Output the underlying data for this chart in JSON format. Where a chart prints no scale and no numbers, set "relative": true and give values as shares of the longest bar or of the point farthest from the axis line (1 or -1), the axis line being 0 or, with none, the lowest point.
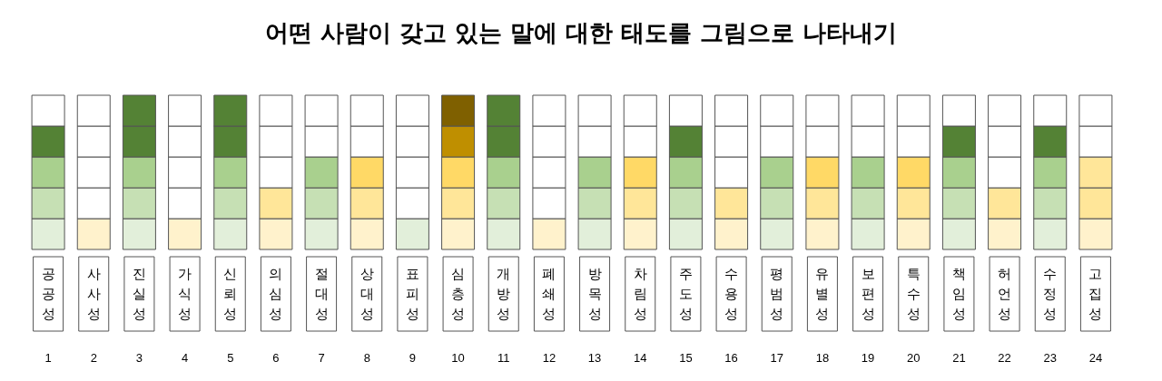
{
  "chart_data": {
    "type": "bar",
    "title": "어떤 사람이 갖고 있는 말에 대한 태도를 그림으로 나타내기",
    "relative": true,
    "stacked": true,
    "grid": false,
    "categories": [
      "공공성",
      "사사성",
      "진실성",
      "가식성",
      "신뢰성",
      "의심성",
      "절대성",
      "상대성",
      "표피성",
      "심층성",
      "개방성",
      "폐쇄성",
      "방목성",
      "차림성",
      "주도성",
      "수용성",
      "평범성",
      "유별성",
      "보편성",
      "특수성",
      "책임성",
      "허언성",
      "수정성",
      "고집성"
    ],
    "series": [
      {
        "values": [
          0.2,
          0.2,
          0.2,
          0.2,
          0.2,
          0.2,
          0.2,
          0.2,
          0.2,
          0.2,
          0.2,
          0.2,
          0.2,
          0.2,
          0.2,
          0.2,
          0.2,
          0.2,
          0.2,
          0.2,
          0.2,
          0.2,
          0.2,
          0.2
        ],
        "colors": [
          "#e2efda",
          "#fff2cc",
          "#e2efda",
          "#fff2cc",
          "#e2efda",
          "#fff2cc",
          "#e2efda",
          "#fff2cc",
          "#e2efda",
          "#fff2cc",
          "#e2efda",
          "#fff2cc",
          "#e2efda",
          "#fff2cc",
          "#e2efda",
          "#fff2cc",
          "#e2efda",
          "#fff2cc",
          "#e2efda",
          "#fff2cc",
          "#e2efda",
          "#fff2cc",
          "#e2efda",
          "#fff2cc"
        ]
      },
      {
        "values": [
          0.2,
          0.2,
          0.2,
          0.2,
          0.2,
          0.2,
          0.2,
          0.2,
          0.2,
          0.2,
          0.2,
          0.2,
          0.2,
          0.2,
          0.2,
          0.2,
          0.2,
          0.2,
          0.2,
          0.2,
          0.2,
          0.2,
          0.2,
          0.2
        ],
        "colors": [
          "#c6e0b4",
          "#ffffff",
          "#c6e0b4",
          "#ffffff",
          "#c6e0b4",
          "#ffe699",
          "#c6e0b4",
          "#ffe699",
          "#ffffff",
          "#ffe699",
          "#c6e0b4",
          "#ffffff",
          "#c6e0b4",
          "#ffe699",
          "#c6e0b4",
          "#ffe699",
          "#c6e0b4",
          "#ffe699",
          "#c6e0b4",
          "#ffe699",
          "#c6e0b4",
          "#ffe699",
          "#c6e0b4",
          "#ffe699"
        ]
      },
      {
        "values": [
          0.2,
          0.2,
          0.2,
          0.2,
          0.2,
          0.2,
          0.2,
          0.2,
          0.2,
          0.2,
          0.2,
          0.2,
          0.2,
          0.2,
          0.2,
          0.2,
          0.2,
          0.2,
          0.2,
          0.2,
          0.2,
          0.2,
          0.2,
          0.2
        ],
        "colors": [
          "#a9d08e",
          "#ffffff",
          "#a9d08e",
          "#ffffff",
          "#a9d08e",
          "#ffffff",
          "#a9d08e",
          "#ffd966",
          "#ffffff",
          "#ffd966",
          "#a9d08e",
          "#ffffff",
          "#a9d08e",
          "#ffd966",
          "#a9d08e",
          "#ffffff",
          "#a9d08e",
          "#ffd966",
          "#a9d08e",
          "#ffd966",
          "#a9d08e",
          "#ffffff",
          "#a9d08e",
          "#ffe699"
        ]
      },
      {
        "values": [
          0.2,
          0.2,
          0.2,
          0.2,
          0.2,
          0.2,
          0.2,
          0.2,
          0.2,
          0.2,
          0.2,
          0.2,
          0.2,
          0.2,
          0.2,
          0.2,
          0.2,
          0.2,
          0.2,
          0.2,
          0.2,
          0.2,
          0.2,
          0.2
        ],
        "colors": [
          "#548235",
          "#ffffff",
          "#548235",
          "#ffffff",
          "#548235",
          "#ffffff",
          "#ffffff",
          "#ffffff",
          "#ffffff",
          "#bf8f00",
          "#548235",
          "#ffffff",
          "#ffffff",
          "#ffffff",
          "#548235",
          "#ffffff",
          "#ffffff",
          "#ffffff",
          "#ffffff",
          "#ffffff",
          "#548235",
          "#ffffff",
          "#548235",
          "#ffffff"
        ]
      },
      {
        "values": [
          0.2,
          0.2,
          0.2,
          0.2,
          0.2,
          0.2,
          0.2,
          0.2,
          0.2,
          0.2,
          0.2,
          0.2,
          0.2,
          0.2,
          0.2,
          0.2,
          0.2,
          0.2,
          0.2,
          0.2,
          0.2,
          0.2,
          0.2,
          0.2
        ],
        "colors": [
          "#ffffff",
          "#ffffff",
          "#548235",
          "#ffffff",
          "#548235",
          "#ffffff",
          "#ffffff",
          "#ffffff",
          "#ffffff",
          "#7f6000",
          "#548235",
          "#ffffff",
          "#ffffff",
          "#ffffff",
          "#ffffff",
          "#ffffff",
          "#ffffff",
          "#ffffff",
          "#ffffff",
          "#ffffff",
          "#ffffff",
          "#ffffff",
          "#ffffff",
          "#ffffff"
        ]
      }
    ],
    "annotations": [
      "1",
      "2",
      "3",
      "4",
      "5",
      "6",
      "7",
      "8",
      "9",
      "10",
      "11",
      "12",
      "13",
      "14",
      "15",
      "16",
      "17",
      "18",
      "19",
      "20",
      "21",
      "22",
      "23",
      "24"
    ]
  }
}
